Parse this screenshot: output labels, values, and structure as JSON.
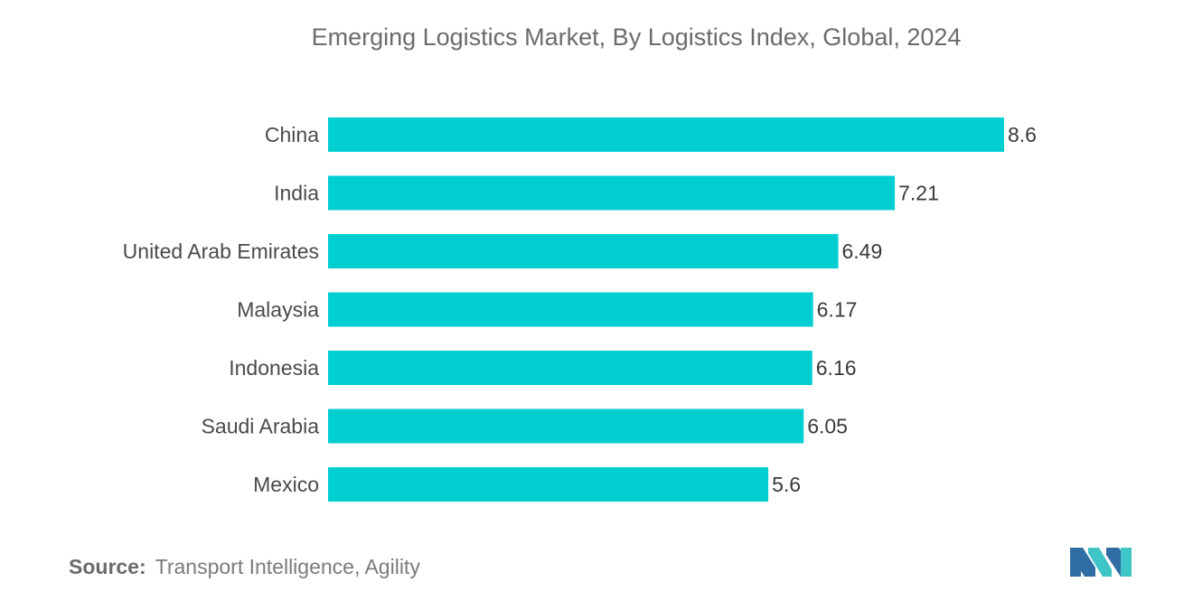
{
  "chart_data": {
    "type": "bar",
    "orientation": "horizontal",
    "title": "Emerging Logistics Market, By Logistics Index, Global, 2024",
    "categories": [
      "China",
      "India",
      "United Arab Emirates",
      "Malaysia",
      "Indonesia",
      "Saudi Arabia",
      "Mexico"
    ],
    "values": [
      8.6,
      7.21,
      6.49,
      6.17,
      6.16,
      6.05,
      5.6
    ],
    "value_labels": [
      "8.6",
      "7.21",
      "6.49",
      "6.17",
      "6.16",
      "6.05",
      "5.6"
    ],
    "xlim": [
      0,
      8.6
    ],
    "xlabel": "",
    "ylabel": "",
    "grid": false,
    "legend": "none",
    "bar_color": "#00CED1"
  },
  "source": {
    "label": "Source:",
    "text": "Transport Intelligence, Agility"
  },
  "logo": {
    "icon": "mordor-intelligence-logo-icon",
    "colors": [
      "#2F6DA3",
      "#3FC4C8"
    ]
  }
}
